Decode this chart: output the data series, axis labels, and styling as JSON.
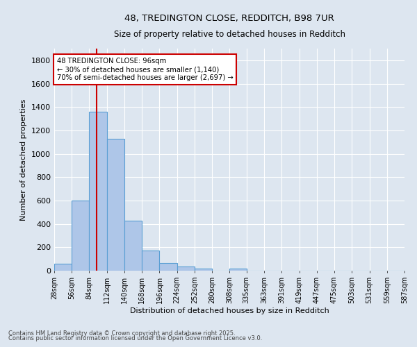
{
  "title_line1": "48, TREDINGTON CLOSE, REDDITCH, B98 7UR",
  "title_line2": "Size of property relative to detached houses in Redditch",
  "xlabel": "Distribution of detached houses by size in Redditch",
  "ylabel": "Number of detached properties",
  "bin_edges": [
    28,
    56,
    84,
    112,
    140,
    168,
    196,
    224,
    252,
    280,
    308,
    335,
    363,
    391,
    419,
    447,
    475,
    503,
    531,
    559,
    587
  ],
  "bin_counts": [
    60,
    600,
    1360,
    1130,
    430,
    170,
    65,
    35,
    15,
    0,
    15,
    0,
    0,
    0,
    0,
    0,
    0,
    0,
    0,
    0
  ],
  "bar_color": "#aec6e8",
  "bar_edge_color": "#5a9fd4",
  "background_color": "#dde6f0",
  "grid_color": "#ffffff",
  "vline_x": 96,
  "vline_color": "#cc0000",
  "annotation_text": "48 TREDINGTON CLOSE: 96sqm\n← 30% of detached houses are smaller (1,140)\n70% of semi-detached houses are larger (2,697) →",
  "annotation_box_color": "#ffffff",
  "annotation_box_edge_color": "#cc0000",
  "ylim": [
    0,
    1900
  ],
  "yticks": [
    0,
    200,
    400,
    600,
    800,
    1000,
    1200,
    1400,
    1600,
    1800
  ],
  "xtick_labels": [
    "28sqm",
    "56sqm",
    "84sqm",
    "112sqm",
    "140sqm",
    "168sqm",
    "196sqm",
    "224sqm",
    "252sqm",
    "280sqm",
    "308sqm",
    "335sqm",
    "363sqm",
    "391sqm",
    "419sqm",
    "447sqm",
    "475sqm",
    "503sqm",
    "531sqm",
    "559sqm",
    "587sqm"
  ],
  "footnote_line1": "Contains HM Land Registry data © Crown copyright and database right 2025.",
  "footnote_line2": "Contains public sector information licensed under the Open Government Licence v3.0."
}
